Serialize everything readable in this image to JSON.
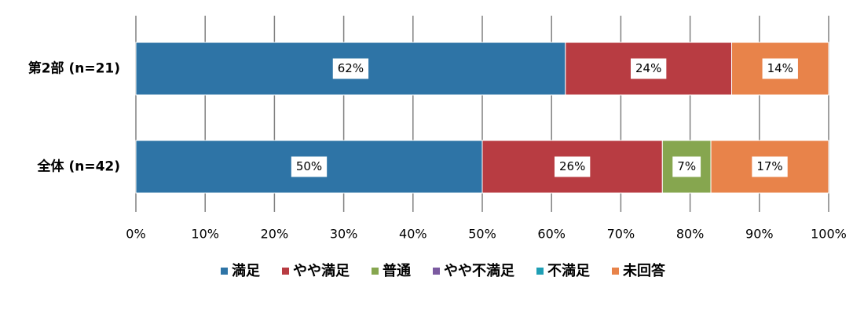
{
  "chart_data": {
    "type": "stacked-bar-horizontal",
    "categories": [
      "第2部 (n=21)",
      "全体 (n=42)"
    ],
    "series": [
      {
        "name": "満足",
        "color": "#2e74a6",
        "values": [
          62,
          50
        ],
        "value_labels": [
          "62%",
          "50%"
        ]
      },
      {
        "name": "やや満足",
        "color": "#b83c42",
        "values": [
          24,
          26
        ],
        "value_labels": [
          "24%",
          "26%"
        ]
      },
      {
        "name": "普通",
        "color": "#86a64f",
        "values": [
          0,
          7
        ],
        "value_labels": [
          null,
          "7%"
        ]
      },
      {
        "name": "やや不満足",
        "color": "#7b5aa0",
        "values": [
          0,
          0
        ],
        "value_labels": [
          null,
          null
        ]
      },
      {
        "name": "不満足",
        "color": "#1f9fb5",
        "values": [
          0,
          0
        ],
        "value_labels": [
          null,
          null
        ]
      },
      {
        "name": "未回答",
        "color": "#e8834a",
        "values": [
          14,
          17
        ],
        "value_labels": [
          "14%",
          "17%"
        ]
      }
    ],
    "xlim": [
      0,
      100
    ],
    "xticks": [
      {
        "value": 0,
        "label": "0%"
      },
      {
        "value": 10,
        "label": "10%"
      },
      {
        "value": 20,
        "label": "20%"
      },
      {
        "value": 30,
        "label": "30%"
      },
      {
        "value": 40,
        "label": "40%"
      },
      {
        "value": 50,
        "label": "50%"
      },
      {
        "value": 60,
        "label": "60%"
      },
      {
        "value": 70,
        "label": "70%"
      },
      {
        "value": 80,
        "label": "80%"
      },
      {
        "value": 90,
        "label": "90%"
      },
      {
        "value": 100,
        "label": "100%"
      }
    ],
    "grid": true,
    "legend": "bottom"
  }
}
